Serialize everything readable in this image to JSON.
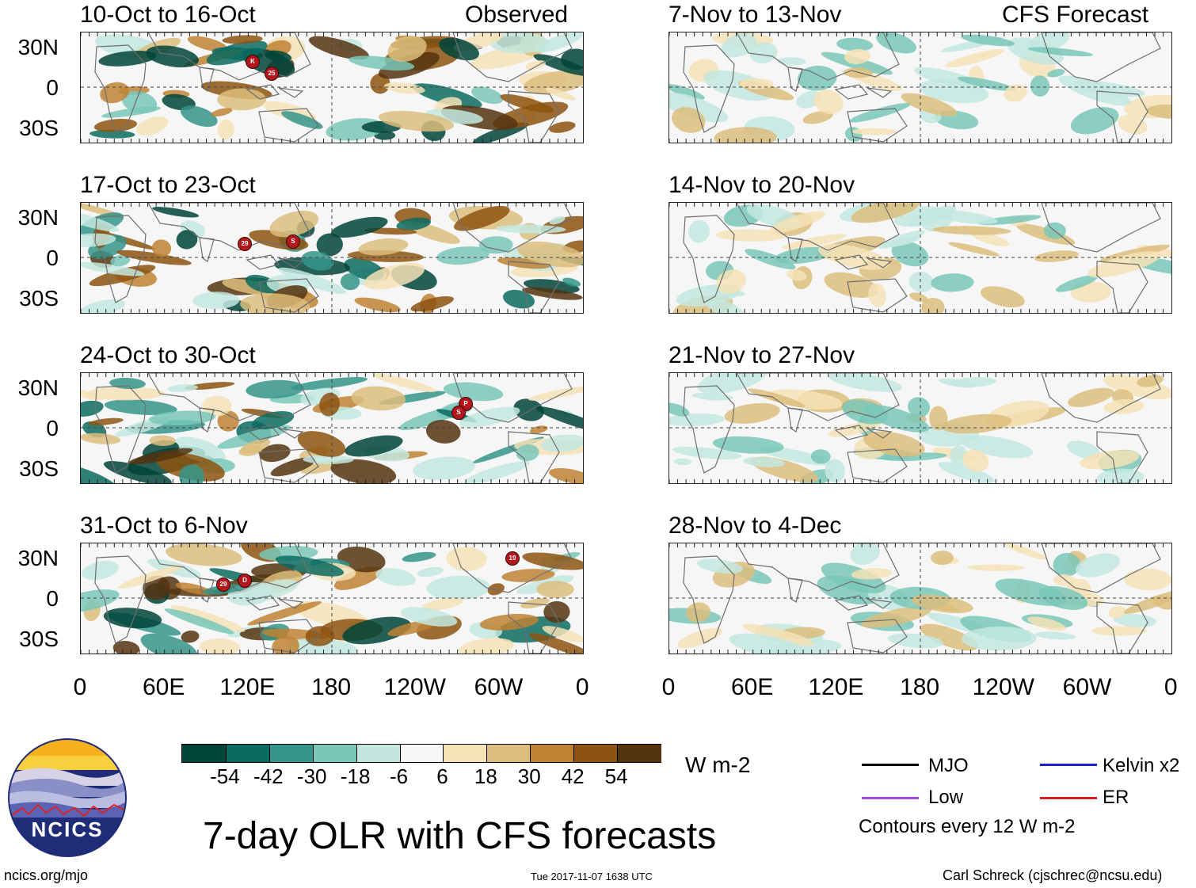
{
  "left_column_label": "Observed",
  "right_column_label": "CFS Forecast",
  "panels_left": [
    {
      "title": "10-Oct to 16-Oct"
    },
    {
      "title": "17-Oct to 23-Oct"
    },
    {
      "title": "24-Oct to 30-Oct"
    },
    {
      "title": "31-Oct to 6-Nov"
    }
  ],
  "panels_right": [
    {
      "title": "7-Nov to 13-Nov"
    },
    {
      "title": "14-Nov to 20-Nov"
    },
    {
      "title": "21-Nov to 27-Nov"
    },
    {
      "title": "28-Nov to 4-Dec"
    }
  ],
  "lat_labels": [
    "30N",
    "0",
    "30S"
  ],
  "lon_labels": [
    "0",
    "60E",
    "120E",
    "180",
    "120W",
    "60W",
    "0"
  ],
  "storm_markers": [
    {
      "panel": 0,
      "label": "K"
    },
    {
      "panel": 0,
      "label": "25"
    },
    {
      "panel": 1,
      "label": "29"
    },
    {
      "panel": 1,
      "label": "S"
    },
    {
      "panel": 2,
      "label": "P"
    },
    {
      "panel": 2,
      "label": "S"
    },
    {
      "panel": 3,
      "label": "29"
    },
    {
      "panel": 3,
      "label": "D"
    },
    {
      "panel": 3,
      "label": "19"
    }
  ],
  "colorbar": {
    "unit": "W m-2",
    "labels": [
      "-54",
      "-42",
      "-30",
      "-18",
      "-6",
      "6",
      "18",
      "30",
      "42",
      "54"
    ],
    "colors": [
      "#01443a",
      "#0c6b60",
      "#35958a",
      "#79c7b9",
      "#c3e7df",
      "#f7f7f7",
      "#f5e2b6",
      "#dcbd7c",
      "#be8234",
      "#8d5310",
      "#553410"
    ]
  },
  "legend": {
    "items": [
      {
        "label": "MJO",
        "color": "#000000"
      },
      {
        "label": "Kelvin x2",
        "color": "#1f1fd6"
      },
      {
        "label": "Low",
        "color": "#a24be0"
      },
      {
        "label": "ER",
        "color": "#d61f1f"
      }
    ],
    "contour_note": "Contours every 12 W m-2"
  },
  "logo": {
    "text": "NCICS"
  },
  "main_title": "7-day OLR with CFS forecasts",
  "footer": {
    "url": "ncics.org/mjo",
    "timestamp": "Tue 2017-11-07 1638 UTC",
    "author": "Carl Schreck (cjschrec@ncsu.edu)"
  }
}
